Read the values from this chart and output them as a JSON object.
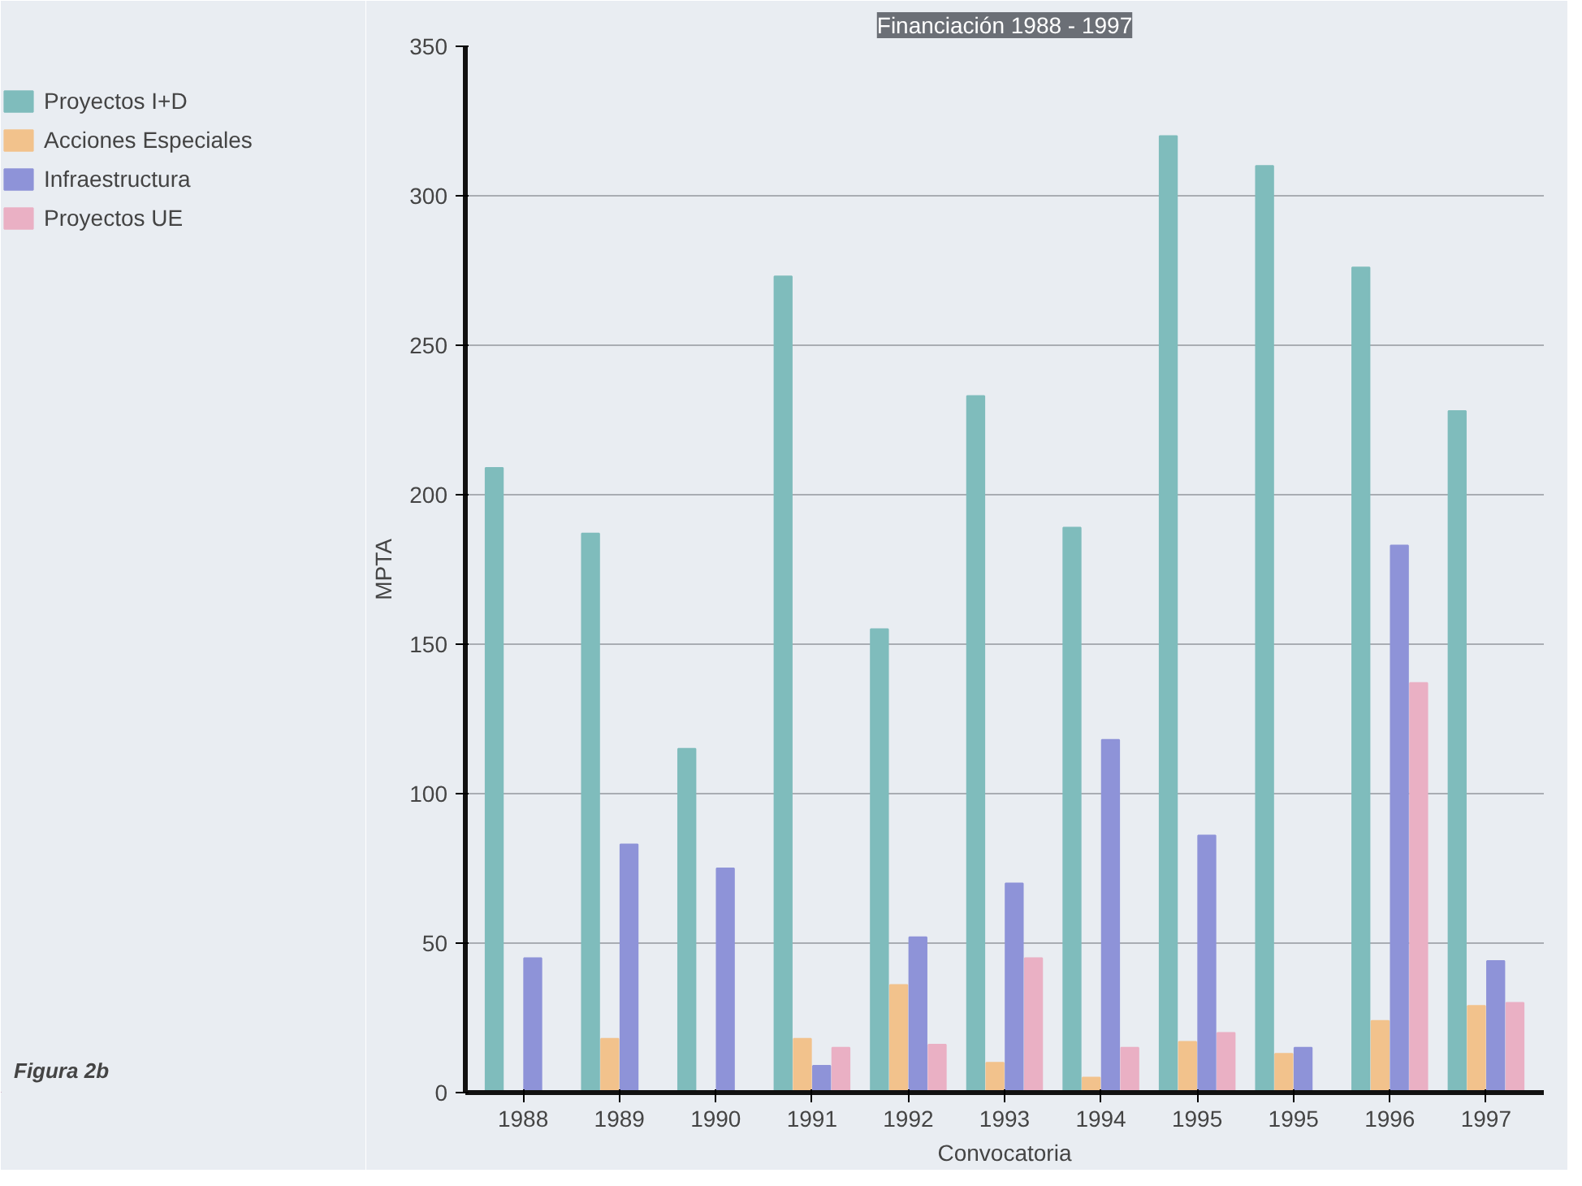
{
  "chart_data": {
    "type": "bar",
    "title": "Financiación 1988 - 1997",
    "xlabel": "Convocatoria",
    "ylabel": "MPTA",
    "categories": [
      "1988",
      "1989",
      "1990",
      "1991",
      "1992",
      "1993",
      "1994",
      "1995",
      "1995",
      "1996",
      "1997"
    ],
    "series": [
      {
        "name": "Proyectos I+D",
        "color": "#7fbcbc",
        "values": [
          209,
          187,
          115,
          273,
          155,
          233,
          189,
          320,
          310,
          276,
          228
        ]
      },
      {
        "name": "Acciones Especiales",
        "color": "#f2c28c",
        "values": [
          0,
          18,
          null,
          18,
          36,
          10,
          5,
          17,
          13,
          24,
          29
        ]
      },
      {
        "name": "Infraestructura",
        "color": "#8e93d8",
        "values": [
          45,
          83,
          75,
          9,
          52,
          70,
          118,
          86,
          15,
          183,
          44
        ]
      },
      {
        "name": "Proyectos UE",
        "color": "#eab0c4",
        "values": [
          0,
          0,
          0,
          15,
          16,
          45,
          15,
          20,
          0,
          137,
          30
        ]
      }
    ],
    "ylim": [
      0,
      350
    ],
    "yticks": [
      0,
      50,
      100,
      150,
      200,
      250,
      300,
      350
    ],
    "grid": "y",
    "legend": "left",
    "annotations": [
      "Figura 2b"
    ]
  }
}
